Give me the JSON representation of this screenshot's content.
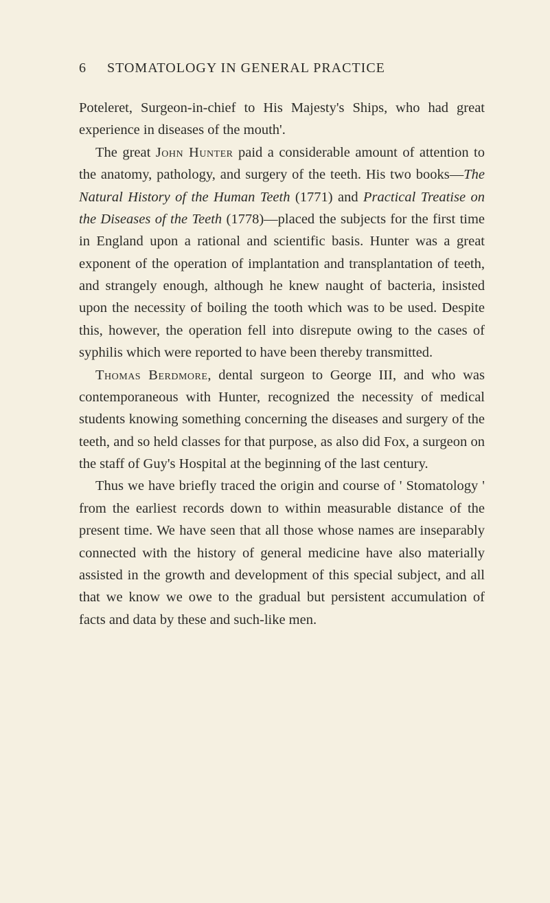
{
  "page_number": "6",
  "header_title": "STOMATOLOGY IN GENERAL PRACTICE",
  "para1_part1": "Poteleret, Surgeon-in-chief to His Majesty's Ships, who had great experience in diseases of the mouth'.",
  "para2_part1": "The great ",
  "para2_sc1": "John Hunter",
  "para2_part2": " paid a considerable amount of attention to the anatomy, pathology, and surgery of the teeth. His two books—",
  "para2_it1": "The Natural History of the Human Teeth",
  "para2_part3": " (1771) and ",
  "para2_it2": "Practical Treatise on the Diseases of the Teeth",
  "para2_part4": " (1778)—placed the subjects for the first time in England upon a rational and scientific basis. Hunter was a great exponent of the operation of implantation and transplanta­tion of teeth, and strangely enough, although he knew naught of bacteria, insisted upon the necessity of boiling the tooth which was to be used. Despite this, however, the operation fell into disrepute owing to the cases of syphilis which were reported to have been thereby transmitted.",
  "para3_sc1": "Thomas Berdmore",
  "para3_part1": ", dental surgeon to George III, and who was contemporaneous with Hunter, recognized the necessity of medical students knowing something concerning the diseases and surgery of the teeth, and so held classes for that purpose, as also did Fox, a surgeon on the staff of Guy's Hospital at the beginning of the last century.",
  "para4_part1": "Thus we have briefly traced the origin and course of ' Stomatology ' from the earliest records down to within measurable distance of the present time. We have seen that all those whose names are inseparably connected with the history of general medicine have also materially assisted in the growth and development of this special subject, and all that we know we owe to the gradual but persistent accumulation of facts and data by these and such-like men."
}
